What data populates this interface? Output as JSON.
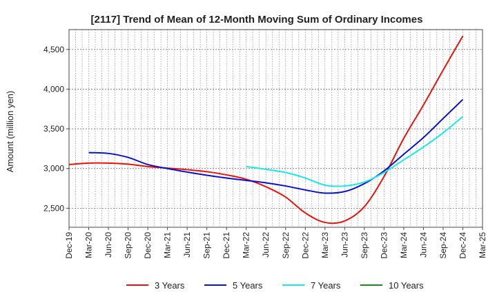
{
  "chart_data": {
    "type": "line",
    "title": "[2117]  Trend of Mean of 12-Month Moving Sum of Ordinary Incomes",
    "xlabel": "",
    "ylabel": "Amount (million yen)",
    "ylim": [
      2260,
      4750
    ],
    "yticks": [
      2500,
      3000,
      3500,
      4000,
      4500
    ],
    "ytick_labels": [
      "2,500",
      "3,000",
      "3,500",
      "4,000",
      "4,500"
    ],
    "x_categories": [
      "Dec-19",
      "Mar-20",
      "Jun-20",
      "Sep-20",
      "Dec-20",
      "Mar-21",
      "Jun-21",
      "Sep-21",
      "Dec-21",
      "Mar-22",
      "Jun-22",
      "Sep-22",
      "Dec-22",
      "Mar-23",
      "Jun-23",
      "Sep-23",
      "Dec-23",
      "Mar-24",
      "Jun-24",
      "Sep-24",
      "Dec-24",
      "Mar-25"
    ],
    "grid": true,
    "legend_position": "bottom",
    "series": [
      {
        "name": "3 Years",
        "color": "#e8120c",
        "values": [
          3050,
          3068,
          3068,
          3055,
          3025,
          3005,
          2985,
          2960,
          2920,
          2865,
          2770,
          2640,
          2440,
          2320,
          2340,
          2520,
          2900,
          3380,
          3800,
          4240,
          4670,
          null
        ]
      },
      {
        "name": "5 Years",
        "color": "#0a10c8",
        "values": [
          null,
          3200,
          3190,
          3140,
          3050,
          3000,
          2955,
          2915,
          2880,
          2850,
          2820,
          2780,
          2730,
          2690,
          2710,
          2810,
          2970,
          3180,
          3390,
          3630,
          3870,
          null
        ]
      },
      {
        "name": "7 Years",
        "color": "#18e8e8",
        "values": [
          null,
          null,
          null,
          null,
          null,
          null,
          null,
          null,
          null,
          3025,
          2990,
          2950,
          2880,
          2790,
          2780,
          2830,
          2950,
          3110,
          3270,
          3450,
          3655,
          null
        ]
      },
      {
        "name": "10 Years",
        "color": "#1a8a1a",
        "values": [
          null,
          null,
          null,
          null,
          null,
          null,
          null,
          null,
          null,
          null,
          null,
          null,
          null,
          null,
          null,
          null,
          null,
          null,
          null,
          null,
          null,
          null
        ]
      }
    ]
  }
}
